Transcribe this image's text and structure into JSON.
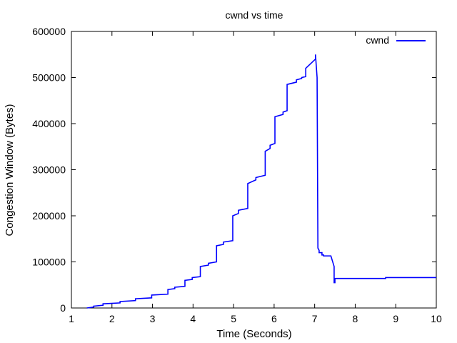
{
  "chart_data": {
    "type": "line",
    "title": "cwnd vs time",
    "xlabel": "Time (Seconds)",
    "ylabel": "Congestion Window (Bytes)",
    "xlim": [
      1,
      10
    ],
    "ylim": [
      0,
      600000
    ],
    "xticks": [
      "1",
      "2",
      "3",
      "4",
      "5",
      "6",
      "7",
      "8",
      "9",
      "10"
    ],
    "yticks": [
      "0",
      "100000",
      "200000",
      "300000",
      "400000",
      "500000",
      "600000"
    ],
    "grid": false,
    "legend_position": "top-right",
    "colors": {
      "series": "#0000ff",
      "axis": "#000000",
      "background": "#ffffff"
    },
    "series": [
      {
        "name": "cwnd",
        "x": [
          1.38,
          1.55,
          1.55,
          1.78,
          1.78,
          2.2,
          2.2,
          2.58,
          2.58,
          2.98,
          2.98,
          3.38,
          3.38,
          3.55,
          3.55,
          3.8,
          3.8,
          3.98,
          3.98,
          4.18,
          4.18,
          4.38,
          4.38,
          4.58,
          4.58,
          4.75,
          4.75,
          4.98,
          4.98,
          5.12,
          5.12,
          5.35,
          5.35,
          5.55,
          5.55,
          5.78,
          5.78,
          5.9,
          5.9,
          6.02,
          6.02,
          6.22,
          6.22,
          6.32,
          6.32,
          6.55,
          6.55,
          6.68,
          6.68,
          6.78,
          6.78,
          7.02,
          7.02,
          7.06,
          7.08,
          7.11,
          7.11,
          7.18,
          7.18,
          7.22,
          7.22,
          7.4,
          7.48,
          7.48,
          7.5,
          7.5,
          8.75,
          8.75,
          10.0
        ],
        "y": [
          0,
          2000,
          4000,
          6000,
          9000,
          11000,
          14000,
          16000,
          20000,
          22000,
          28000,
          30000,
          40000,
          42000,
          45000,
          47000,
          60000,
          62000,
          66000,
          68000,
          90000,
          93000,
          97000,
          100000,
          135000,
          138000,
          143000,
          146000,
          200000,
          205000,
          212000,
          216000,
          270000,
          278000,
          283000,
          288000,
          340000,
          346000,
          353000,
          357000,
          415000,
          420000,
          425000,
          428000,
          485000,
          490000,
          495000,
          498000,
          500000,
          502000,
          520000,
          540000,
          550000,
          500000,
          130000,
          125000,
          120000,
          120000,
          115000,
          115000,
          113000,
          113000,
          90000,
          55000,
          55000,
          64000,
          64000,
          66000,
          66000
        ]
      }
    ]
  }
}
